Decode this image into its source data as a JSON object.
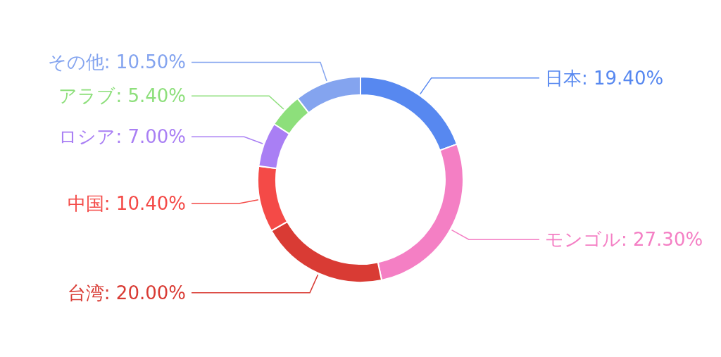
{
  "chart_data": {
    "type": "donut",
    "categories": [
      "日本",
      "モンゴル",
      "台湾",
      "中国",
      "ロシア",
      "アラブ",
      "その他"
    ],
    "values": [
      19.4,
      27.3,
      20.0,
      10.4,
      7.0,
      5.4,
      10.5
    ],
    "value_labels": [
      "19.40%",
      "27.30%",
      "20.00%",
      "10.40%",
      "7.00%",
      "5.40%",
      "10.50%"
    ],
    "colors": [
      "#5788f0",
      "#f47fc4",
      "#d93b34",
      "#f44a47",
      "#a97ff4",
      "#8ddf7b",
      "#84a4ef"
    ]
  }
}
